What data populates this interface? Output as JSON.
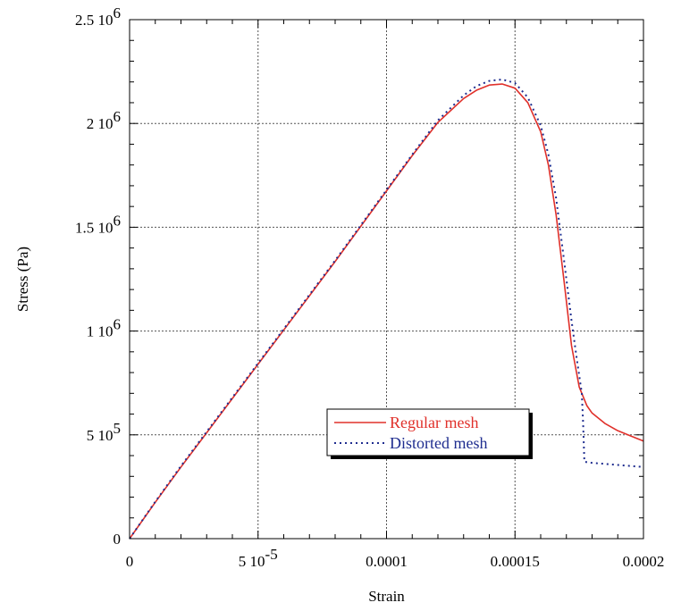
{
  "chart_data": {
    "type": "line",
    "title": "",
    "xlabel": "Strain",
    "ylabel": "Stress (Pa)",
    "xlim": [
      0,
      0.0002
    ],
    "ylim": [
      0,
      2500000
    ],
    "grid": true,
    "legend_position": "center-right",
    "x_ticks": [
      {
        "value": 0,
        "label": "0",
        "exp": ""
      },
      {
        "value": 5e-05,
        "label": "5 10",
        "exp": "-5"
      },
      {
        "value": 0.0001,
        "label": "0.0001",
        "exp": ""
      },
      {
        "value": 0.00015,
        "label": "0.00015",
        "exp": ""
      },
      {
        "value": 0.0002,
        "label": "0.0002",
        "exp": ""
      }
    ],
    "y_ticks": [
      {
        "value": 0,
        "label": "0",
        "exp": ""
      },
      {
        "value": 500000,
        "label": "5 10",
        "exp": "5"
      },
      {
        "value": 1000000,
        "label": "1 10",
        "exp": "6"
      },
      {
        "value": 1500000,
        "label": "1.5 10",
        "exp": "6"
      },
      {
        "value": 2000000,
        "label": "2 10",
        "exp": "6"
      },
      {
        "value": 2500000,
        "label": "2.5 10",
        "exp": "6"
      }
    ],
    "series": [
      {
        "name": "Regular mesh",
        "color": "#e0302a",
        "dash": "solid",
        "x": [
          0,
          1e-05,
          2e-05,
          3e-05,
          4e-05,
          5e-05,
          6e-05,
          7e-05,
          8e-05,
          9e-05,
          0.0001,
          0.00011,
          0.00012,
          0.00013,
          0.000135,
          0.00014,
          0.000145,
          0.00015,
          0.000155,
          0.00016,
          0.000163,
          0.000166,
          0.000169,
          0.000172,
          0.000175,
          0.000178,
          0.00018,
          0.000185,
          0.00019,
          0.000195,
          0.0002
        ],
        "y": [
          0,
          175000,
          345000,
          510000,
          675000,
          840000,
          1005000,
          1170000,
          1335000,
          1505000,
          1675000,
          1845000,
          2005000,
          2120000,
          2160000,
          2185000,
          2190000,
          2170000,
          2100000,
          1960000,
          1800000,
          1560000,
          1250000,
          930000,
          730000,
          640000,
          605000,
          555000,
          520000,
          495000,
          470000
        ]
      },
      {
        "name": "Distorted mesh",
        "color": "#1f2d8f",
        "dash": "dotted",
        "x": [
          0,
          1e-05,
          2e-05,
          3e-05,
          4e-05,
          5e-05,
          6e-05,
          7e-05,
          8e-05,
          9e-05,
          0.0001,
          0.00011,
          0.00012,
          0.00013,
          0.000135,
          0.00014,
          0.000145,
          0.00015,
          0.000155,
          0.00016,
          0.000163,
          0.000166,
          0.000169,
          0.000172,
          0.000174,
          0.000176,
          0.0001765,
          0.000177,
          0.00018,
          0.00019,
          0.0002
        ],
        "y": [
          0,
          178000,
          350000,
          515000,
          680000,
          845000,
          1010000,
          1175000,
          1340000,
          1510000,
          1680000,
          1850000,
          2015000,
          2135000,
          2180000,
          2205000,
          2212000,
          2195000,
          2125000,
          1990000,
          1850000,
          1640000,
          1350000,
          1050000,
          870000,
          700000,
          560000,
          370000,
          365000,
          355000,
          345000
        ]
      }
    ]
  }
}
